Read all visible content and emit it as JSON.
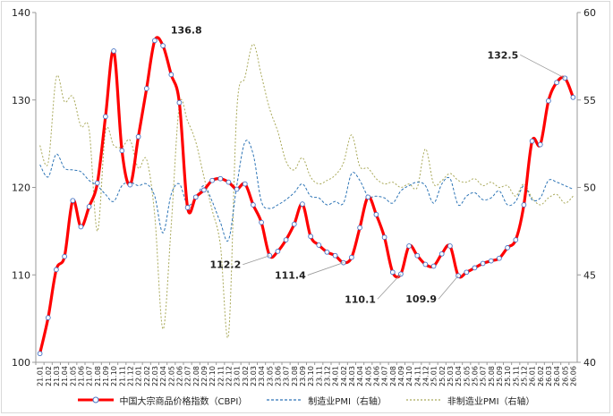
{
  "chart_data": {
    "type": "line",
    "title": "",
    "xlabel": "",
    "ylabel": "",
    "ylim_left": [
      100,
      140
    ],
    "ylim_right": [
      40,
      60
    ],
    "yticks_left": [
      100,
      110,
      120,
      130,
      140
    ],
    "yticks_right": [
      40,
      45,
      50,
      55,
      60
    ],
    "grid": false,
    "legend_position": "bottom",
    "categories": [
      "21.01",
      "21.02",
      "21.03",
      "21.04",
      "21.05",
      "21.06",
      "21.07",
      "21.08",
      "21.09",
      "21.10",
      "21.11",
      "21.12",
      "22.01",
      "22.02",
      "22.03",
      "22.04",
      "22.05",
      "22.06",
      "22.07",
      "22.08",
      "22.09",
      "22.10",
      "22.11",
      "22.12",
      "23.01",
      "23.02",
      "23.03",
      "23.04",
      "23.05",
      "23.06",
      "23.07",
      "23.08",
      "23.09",
      "23.10",
      "23.11",
      "23.12",
      "24.01",
      "24.02",
      "24.03",
      "24.04",
      "24.05",
      "24.06",
      "24.07",
      "24.08",
      "24.09",
      "24.10",
      "24.11",
      "24.12",
      "25.01",
      "25.02",
      "25.03",
      "25.04",
      "25.05",
      "25.06",
      "25.07",
      "25.08",
      "25.09",
      "25.10",
      "25.11",
      "25.12",
      "26.01",
      "26.02",
      "26.03",
      "26.04",
      "26.05",
      "26.06"
    ],
    "series": [
      {
        "name": "中国大宗商品价格指数（CBPI）",
        "axis": "left",
        "color": "#ff0000",
        "style": "solid-markers",
        "values": [
          101.0,
          105.1,
          110.6,
          112.1,
          118.5,
          115.5,
          117.8,
          120.5,
          128.1,
          135.6,
          124.2,
          120.3,
          125.8,
          131.3,
          136.8,
          136.2,
          132.9,
          129.7,
          117.7,
          118.9,
          119.7,
          120.8,
          121.0,
          120.6,
          119.8,
          120.4,
          118.0,
          116.0,
          112.2,
          112.7,
          114.0,
          115.8,
          118.1,
          114.4,
          113.4,
          112.6,
          112.2,
          111.4,
          112.0,
          115.4,
          118.9,
          116.9,
          114.3,
          110.3,
          110.1,
          113.3,
          112.2,
          111.2,
          111.0,
          112.4,
          113.3,
          109.9,
          110.3,
          110.8,
          111.3,
          111.6,
          111.9,
          113.1,
          114.0,
          118.0,
          125.3,
          124.9,
          129.9,
          132.0,
          132.5,
          130.3
        ]
      },
      {
        "name": "制造业PMI（右轴）",
        "axis": "right",
        "color": "#2e75b6",
        "style": "dashed",
        "values": [
          51.3,
          50.6,
          51.9,
          51.1,
          51.0,
          50.9,
          50.4,
          50.1,
          49.6,
          49.2,
          50.1,
          50.3,
          50.1,
          50.2,
          49.5,
          47.4,
          49.6,
          50.2,
          49.0,
          49.4,
          50.1,
          49.2,
          48.0,
          47.0,
          50.1,
          52.6,
          51.9,
          49.2,
          48.8,
          49.0,
          49.3,
          49.7,
          50.2,
          49.5,
          49.4,
          49.0,
          49.2,
          49.1,
          50.8,
          50.4,
          49.5,
          49.5,
          49.4,
          49.1,
          49.8,
          50.1,
          50.3,
          50.1,
          49.1,
          50.2,
          50.5,
          49.0,
          49.5,
          49.7,
          49.3,
          49.4,
          49.8,
          49.0,
          49.2,
          50.1,
          49.3,
          49.4,
          50.4,
          50.3,
          50.1,
          49.9
        ]
      },
      {
        "name": "非制造业PMI（右轴）",
        "axis": "right",
        "color": "#a9a95a",
        "style": "dotted",
        "values": [
          52.4,
          51.4,
          56.3,
          54.9,
          55.2,
          53.5,
          53.3,
          47.5,
          53.2,
          52.4,
          52.3,
          52.7,
          51.1,
          51.6,
          48.4,
          41.9,
          47.8,
          54.7,
          53.8,
          52.6,
          50.6,
          48.7,
          46.7,
          41.6,
          54.4,
          56.3,
          58.2,
          56.4,
          54.5,
          53.2,
          51.5,
          51.0,
          51.7,
          50.6,
          50.2,
          50.4,
          50.7,
          51.4,
          53.0,
          51.2,
          51.1,
          50.5,
          50.2,
          50.3,
          50.0,
          50.2,
          50.0,
          52.2,
          50.2,
          50.4,
          50.8,
          50.4,
          50.3,
          50.5,
          50.1,
          50.3,
          50.0,
          50.1,
          49.5,
          50.2,
          49.4,
          49.0,
          49.4,
          49.6,
          49.1,
          49.5
        ]
      }
    ],
    "annotations": [
      {
        "label": "136.8",
        "series": 0,
        "index": 14
      },
      {
        "label": "132.5",
        "series": 0,
        "index": 64
      },
      {
        "label": "112.2",
        "series": 0,
        "index": 28
      },
      {
        "label": "111.4",
        "series": 0,
        "index": 37
      },
      {
        "label": "110.1",
        "series": 0,
        "index": 44
      },
      {
        "label": "109.9",
        "series": 0,
        "index": 51
      }
    ]
  }
}
